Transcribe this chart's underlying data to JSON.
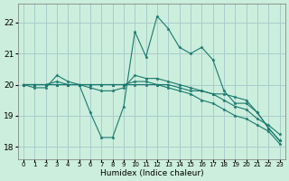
{
  "xlabel": "Humidex (Indice chaleur)",
  "background_color": "#cceedd",
  "grid_color": "#aacccc",
  "line_color": "#1a7a6e",
  "x_ticks": [
    0,
    1,
    2,
    3,
    4,
    5,
    6,
    7,
    8,
    9,
    10,
    11,
    12,
    13,
    14,
    15,
    16,
    17,
    18,
    19,
    20,
    21,
    22,
    23
  ],
  "y_ticks": [
    18,
    19,
    20,
    21,
    22
  ],
  "xlim": [
    -0.5,
    23.5
  ],
  "ylim": [
    17.6,
    22.6
  ],
  "series": [
    [
      20.0,
      19.9,
      19.9,
      20.3,
      20.1,
      20.0,
      19.1,
      18.3,
      18.3,
      19.3,
      21.7,
      20.9,
      22.2,
      21.8,
      21.2,
      21.0,
      21.2,
      20.8,
      19.8,
      19.4,
      19.4,
      19.1,
      18.6,
      18.2
    ],
    [
      20.0,
      20.0,
      20.0,
      20.1,
      20.0,
      20.0,
      19.9,
      19.8,
      19.8,
      19.9,
      20.3,
      20.2,
      20.2,
      20.1,
      20.0,
      19.9,
      19.8,
      19.7,
      19.7,
      19.6,
      19.5,
      19.1,
      18.6,
      18.2
    ],
    [
      20.0,
      20.0,
      20.0,
      20.0,
      20.0,
      20.0,
      20.0,
      20.0,
      20.0,
      20.0,
      20.1,
      20.1,
      20.0,
      20.0,
      19.9,
      19.8,
      19.8,
      19.7,
      19.5,
      19.3,
      19.2,
      18.9,
      18.7,
      18.4
    ],
    [
      20.0,
      20.0,
      20.0,
      20.0,
      20.0,
      20.0,
      20.0,
      20.0,
      20.0,
      20.0,
      20.0,
      20.0,
      20.0,
      19.9,
      19.8,
      19.7,
      19.5,
      19.4,
      19.2,
      19.0,
      18.9,
      18.7,
      18.5,
      18.1
    ]
  ]
}
